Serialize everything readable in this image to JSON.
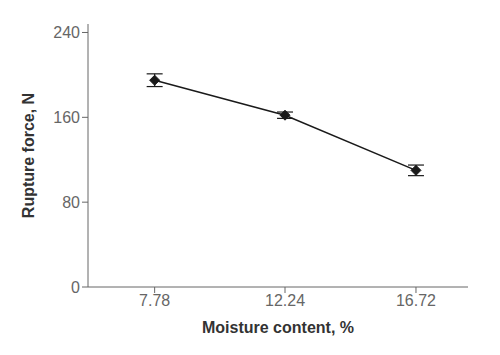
{
  "chart_data": {
    "type": "line",
    "x": [
      7.78,
      12.24,
      16.72
    ],
    "values": [
      195,
      162,
      110
    ],
    "yerr": [
      6,
      3,
      5
    ],
    "color": "#1a1a1a",
    "marker": "diamond",
    "line_style": "solid",
    "xlabel": "Moisture content, %",
    "ylabel": "Rupture force, N",
    "xlim": [
      5.5,
      18.5
    ],
    "xticks": [
      7.78,
      12.24,
      16.72
    ],
    "ylim": [
      0,
      248
    ],
    "yticks": [
      0,
      80,
      160,
      240
    ],
    "grid": false
  }
}
